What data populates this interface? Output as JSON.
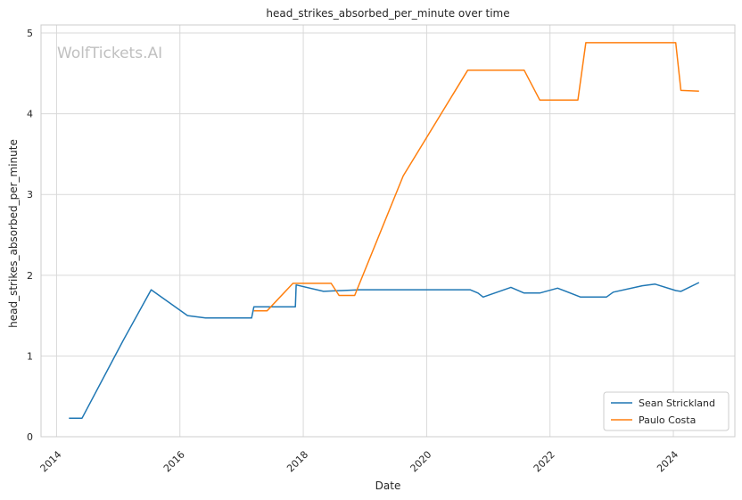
{
  "chart_data": {
    "type": "line",
    "title": "head_strikes_absorbed_per_minute over time",
    "xlabel": "Date",
    "ylabel": "head_strikes_absorbed_per_minute",
    "watermark": "WolfTickets.AI",
    "xlim": [
      "2013-10-01",
      "2024-12-31"
    ],
    "ylim": [
      0,
      5.1
    ],
    "x_ticks": [
      "2014",
      "2016",
      "2018",
      "2020",
      "2022",
      "2024"
    ],
    "y_ticks": [
      "0",
      "1",
      "2",
      "3",
      "4",
      "5"
    ],
    "grid": true,
    "legend": "lower-right",
    "series": [
      {
        "name": "Sean Strickland",
        "color": "#1f77b4",
        "points": [
          [
            "2014-03-15",
            0.23
          ],
          [
            "2014-06-01",
            0.23
          ],
          [
            "2015-02-01",
            1.2
          ],
          [
            "2015-07-15",
            1.82
          ],
          [
            "2016-02-15",
            1.5
          ],
          [
            "2016-06-01",
            1.47
          ],
          [
            "2016-12-01",
            1.47
          ],
          [
            "2017-03-01",
            1.47
          ],
          [
            "2017-03-15",
            1.61
          ],
          [
            "2017-11-15",
            1.61
          ],
          [
            "2017-11-20",
            1.88
          ],
          [
            "2018-05-01",
            1.8
          ],
          [
            "2018-12-01",
            1.82
          ],
          [
            "2020-09-15",
            1.82
          ],
          [
            "2020-11-01",
            1.78
          ],
          [
            "2020-12-01",
            1.73
          ],
          [
            "2021-05-15",
            1.85
          ],
          [
            "2021-08-01",
            1.78
          ],
          [
            "2021-11-01",
            1.78
          ],
          [
            "2022-02-15",
            1.84
          ],
          [
            "2022-07-01",
            1.73
          ],
          [
            "2022-12-01",
            1.73
          ],
          [
            "2023-01-10",
            1.79
          ],
          [
            "2023-07-01",
            1.87
          ],
          [
            "2023-09-15",
            1.89
          ],
          [
            "2024-01-15",
            1.81
          ],
          [
            "2024-02-15",
            1.8
          ],
          [
            "2024-06-01",
            1.91
          ]
        ]
      },
      {
        "name": "Paulo Costa",
        "color": "#ff7f0e",
        "points": [
          [
            "2017-03-15",
            1.56
          ],
          [
            "2017-06-01",
            1.56
          ],
          [
            "2017-11-01",
            1.9
          ],
          [
            "2018-06-15",
            1.9
          ],
          [
            "2018-08-01",
            1.75
          ],
          [
            "2018-11-01",
            1.75
          ],
          [
            "2019-08-15",
            3.23
          ],
          [
            "2020-09-01",
            4.54
          ],
          [
            "2021-08-01",
            4.54
          ],
          [
            "2021-11-01",
            4.17
          ],
          [
            "2022-06-15",
            4.17
          ],
          [
            "2022-08-01",
            4.88
          ],
          [
            "2024-01-15",
            4.88
          ],
          [
            "2024-02-15",
            4.29
          ],
          [
            "2024-06-01",
            4.28
          ]
        ]
      }
    ]
  }
}
